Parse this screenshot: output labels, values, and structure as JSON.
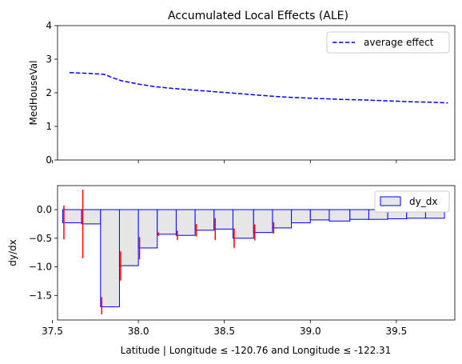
{
  "chart_data": [
    {
      "type": "line",
      "title": "Accumulated Local Effects (ALE)",
      "xlabel": "",
      "ylabel": "MedHouseVal",
      "xlim": [
        37.53,
        39.84
      ],
      "ylim": [
        0,
        4
      ],
      "yticks": [
        0,
        1,
        2,
        3,
        4
      ],
      "ytick_labels": [
        "0",
        "1",
        "2",
        "3",
        "4"
      ],
      "xticks": [
        37.5,
        38.0,
        38.5,
        39.0,
        39.5
      ],
      "show_xtick_labels": false,
      "grid": false,
      "legend": "upper-right",
      "series": [
        {
          "name": "average effect",
          "color": "#0000ff",
          "style": "dashed",
          "x": [
            37.6,
            37.7,
            37.8,
            37.85,
            37.9,
            38.0,
            38.1,
            38.2,
            38.3,
            38.4,
            38.5,
            38.6,
            38.7,
            38.8,
            38.9,
            39.0,
            39.1,
            39.2,
            39.3,
            39.4,
            39.5,
            39.6,
            39.7,
            39.8
          ],
          "y": [
            2.6,
            2.58,
            2.55,
            2.45,
            2.36,
            2.26,
            2.18,
            2.13,
            2.09,
            2.05,
            2.01,
            1.97,
            1.93,
            1.89,
            1.86,
            1.84,
            1.82,
            1.8,
            1.79,
            1.77,
            1.75,
            1.73,
            1.72,
            1.7
          ]
        }
      ]
    },
    {
      "type": "bar",
      "title": "",
      "xlabel": "Latitude | Longitude ≤ -120.76 and Longitude ≤ -122.31",
      "ylabel": "dy/dx",
      "xlim": [
        37.53,
        39.84
      ],
      "ylim": [
        -1.93,
        0.42
      ],
      "yticks": [
        0.0,
        -0.5,
        -1.0,
        -1.5
      ],
      "ytick_labels": [
        "0.0",
        "−0.5",
        "−1.0",
        "−1.5"
      ],
      "xticks": [
        37.5,
        38.0,
        38.5,
        39.0,
        39.5
      ],
      "xtick_labels": [
        "37.5",
        "38.0",
        "38.5",
        "39.0",
        "39.5"
      ],
      "grid": false,
      "legend": "upper-right",
      "bar_fill": "#e6e6e6",
      "bar_edge": "#0000ff",
      "error_color": "#ff0000",
      "series": [
        {
          "name": "dy_dx",
          "bars": [
            {
              "x0": 37.56,
              "x1": 37.67,
              "value": -0.23,
              "err_low": -0.52,
              "err_high": 0.07
            },
            {
              "x0": 37.67,
              "x1": 37.78,
              "value": -0.25,
              "err_low": -0.85,
              "err_high": 0.35
            },
            {
              "x0": 37.78,
              "x1": 37.89,
              "value": -1.7,
              "err_low": -1.83,
              "err_high": -1.53
            },
            {
              "x0": 37.89,
              "x1": 38.0,
              "value": -0.98,
              "err_low": -1.24,
              "err_high": -0.73
            },
            {
              "x0": 38.0,
              "x1": 38.11,
              "value": -0.67,
              "err_low": -0.87,
              "err_high": -0.48
            },
            {
              "x0": 38.11,
              "x1": 38.22,
              "value": -0.43,
              "err_low": -0.46,
              "err_high": -0.4
            },
            {
              "x0": 38.22,
              "x1": 38.33,
              "value": -0.45,
              "err_low": -0.53,
              "err_high": -0.37
            },
            {
              "x0": 38.33,
              "x1": 38.44,
              "value": -0.36,
              "err_low": -0.47,
              "err_high": -0.25
            },
            {
              "x0": 38.44,
              "x1": 38.55,
              "value": -0.34,
              "err_low": -0.53,
              "err_high": -0.15
            },
            {
              "x0": 38.55,
              "x1": 38.67,
              "value": -0.5,
              "err_low": -0.67,
              "err_high": -0.33
            },
            {
              "x0": 38.67,
              "x1": 38.78,
              "value": -0.4,
              "err_low": -0.54,
              "err_high": -0.26
            },
            {
              "x0": 38.78,
              "x1": 38.89,
              "value": -0.32,
              "err_low": -0.42,
              "err_high": -0.22
            },
            {
              "x0": 38.89,
              "x1": 39.0,
              "value": -0.23,
              "err_low": -0.23,
              "err_high": -0.23
            },
            {
              "x0": 39.0,
              "x1": 39.11,
              "value": -0.18,
              "err_low": -0.18,
              "err_high": -0.18
            },
            {
              "x0": 39.11,
              "x1": 39.23,
              "value": -0.2,
              "err_low": -0.2,
              "err_high": -0.2
            },
            {
              "x0": 39.23,
              "x1": 39.34,
              "value": -0.17,
              "err_low": -0.17,
              "err_high": -0.17
            },
            {
              "x0": 39.34,
              "x1": 39.45,
              "value": -0.17,
              "err_low": -0.17,
              "err_high": -0.17
            },
            {
              "x0": 39.45,
              "x1": 39.56,
              "value": -0.16,
              "err_low": -0.16,
              "err_high": -0.16
            },
            {
              "x0": 39.56,
              "x1": 39.67,
              "value": -0.15,
              "err_low": -0.15,
              "err_high": -0.15
            },
            {
              "x0": 39.67,
              "x1": 39.78,
              "value": -0.15,
              "err_low": -0.15,
              "err_high": -0.15
            }
          ]
        }
      ]
    }
  ]
}
